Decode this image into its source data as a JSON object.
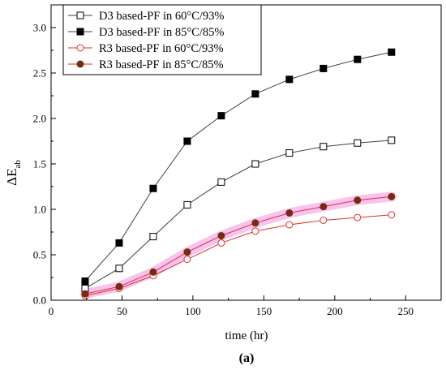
{
  "chart_data": {
    "type": "line",
    "title": "",
    "xlabel": "time (hr)",
    "ylabel_main": "ΔE",
    "ylabel_sub": "ab",
    "caption": "(a)",
    "xlim": [
      0,
      275
    ],
    "ylim": [
      0,
      3.25
    ],
    "x_ticks": [
      0,
      50,
      100,
      150,
      200,
      250
    ],
    "y_ticks": [
      0.0,
      0.5,
      1.0,
      1.5,
      2.0,
      2.5,
      3.0
    ],
    "y_tick_labels": [
      "0.0",
      "0.5",
      "1.0",
      "1.5",
      "2.0",
      "2.5",
      "3.0"
    ],
    "x": [
      24,
      48,
      72,
      96,
      120,
      144,
      168,
      192,
      216,
      240
    ],
    "legend_position": "top-left",
    "series": [
      {
        "name": "D3 based-PF in 60°C/93%",
        "marker": "square-open",
        "color": "#404040",
        "values": [
          0.13,
          0.35,
          0.7,
          1.05,
          1.3,
          1.5,
          1.62,
          1.69,
          1.73,
          1.76
        ]
      },
      {
        "name": "D3 based-PF in 85°C/85%",
        "marker": "square-filled",
        "color": "#404040",
        "values": [
          0.21,
          0.63,
          1.23,
          1.75,
          2.03,
          2.27,
          2.43,
          2.55,
          2.65,
          2.73
        ]
      },
      {
        "name": "R3 based-PF in 60°C/93%",
        "marker": "circle-open",
        "color": "#e0302c",
        "values": [
          0.05,
          0.13,
          0.27,
          0.45,
          0.63,
          0.76,
          0.83,
          0.88,
          0.91,
          0.94
        ]
      },
      {
        "name": "R3 based-PF in 85°C/85%",
        "marker": "circle-filled",
        "color": "#e0302c",
        "fill_marker": "#7a2a10",
        "values": [
          0.07,
          0.15,
          0.31,
          0.53,
          0.71,
          0.85,
          0.96,
          1.03,
          1.1,
          1.14
        ]
      }
    ],
    "highlight_color": "#f6b8ee"
  }
}
